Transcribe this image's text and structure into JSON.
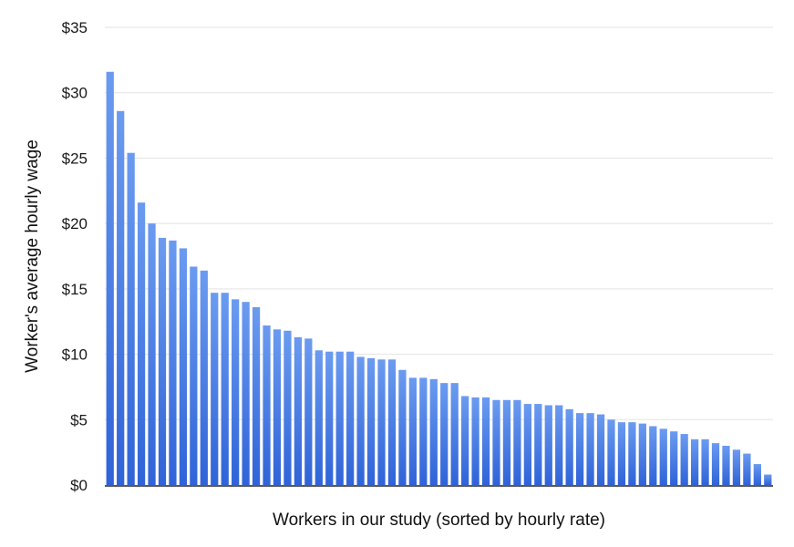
{
  "chart_data": {
    "type": "bar",
    "xlabel": "Workers in our study (sorted by hourly rate)",
    "ylabel": "Worker's average hourly wage",
    "ylim": [
      0,
      35
    ],
    "yticks": [
      0,
      5,
      10,
      15,
      20,
      25,
      30,
      35
    ],
    "ytick_labels": [
      "$0",
      "$5",
      "$10",
      "$15",
      "$20",
      "$25",
      "$30",
      "$35"
    ],
    "grid": true,
    "legend": "none",
    "bar_color_top": "#6b9bf0",
    "bar_color_bottom": "#2f63d8",
    "values": [
      31.6,
      28.6,
      25.4,
      21.6,
      20.0,
      18.9,
      18.7,
      18.1,
      16.7,
      16.4,
      14.7,
      14.7,
      14.2,
      14.0,
      13.6,
      12.2,
      11.9,
      11.8,
      11.3,
      11.2,
      10.3,
      10.2,
      10.2,
      10.2,
      9.8,
      9.7,
      9.6,
      9.6,
      8.8,
      8.2,
      8.2,
      8.1,
      7.8,
      7.8,
      6.8,
      6.7,
      6.7,
      6.5,
      6.5,
      6.5,
      6.2,
      6.2,
      6.1,
      6.1,
      5.8,
      5.5,
      5.5,
      5.4,
      5.0,
      4.8,
      4.8,
      4.7,
      4.5,
      4.3,
      4.1,
      3.9,
      3.5,
      3.5,
      3.2,
      3.0,
      2.7,
      2.4,
      1.6,
      0.8
    ]
  }
}
